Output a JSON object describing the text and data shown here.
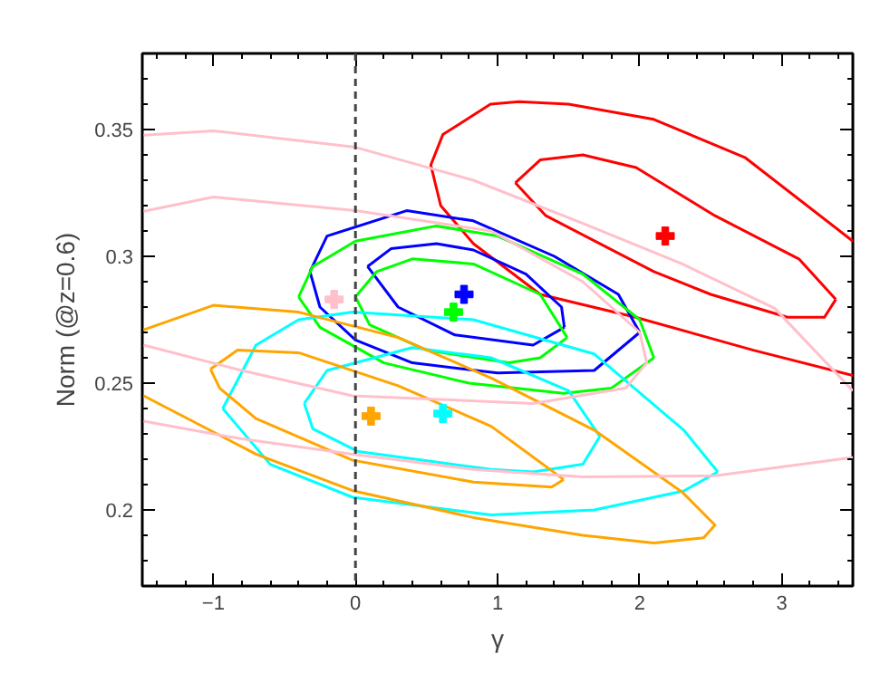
{
  "chart_data": {
    "type": "line",
    "xlabel": "γ",
    "ylabel": "Norm (@z=0.6)",
    "xlim": [
      -1.5,
      3.5
    ],
    "ylim": [
      0.17,
      0.38
    ],
    "xticks": [
      {
        "value": -1.4,
        "label": null
      },
      {
        "value": -1.2,
        "label": null
      },
      -1,
      {
        "value": -0.8,
        "label": null
      },
      {
        "value": -0.6,
        "label": null
      },
      {
        "value": -0.4,
        "label": null
      },
      {
        "value": -0.2,
        "label": null
      },
      0,
      {
        "value": 0.2,
        "label": null
      },
      {
        "value": 0.4,
        "label": null
      },
      {
        "value": 0.6,
        "label": null
      },
      {
        "value": 0.8,
        "label": null
      },
      1,
      {
        "value": 1.2,
        "label": null
      },
      {
        "value": 1.4,
        "label": null
      },
      {
        "value": 1.6,
        "label": null
      },
      {
        "value": 1.8,
        "label": null
      },
      2,
      {
        "value": 2.2,
        "label": null
      },
      {
        "value": 2.4,
        "label": null
      },
      {
        "value": 2.6,
        "label": null
      },
      {
        "value": 2.8,
        "label": null
      },
      3,
      {
        "value": 3.2,
        "label": null
      },
      {
        "value": 3.4,
        "label": null
      }
    ],
    "yticks": [
      {
        "value": 0.18,
        "label": null
      },
      {
        "value": 0.19,
        "label": null
      },
      0.2,
      {
        "value": 0.21,
        "label": null
      },
      {
        "value": 0.22,
        "label": null
      },
      {
        "value": 0.23,
        "label": null
      },
      {
        "value": 0.24,
        "label": null
      },
      0.25,
      {
        "value": 0.26,
        "label": null
      },
      {
        "value": 0.27,
        "label": null
      },
      {
        "value": 0.28,
        "label": null
      },
      {
        "value": 0.29,
        "label": null
      },
      0.3,
      {
        "value": 0.31,
        "label": null
      },
      {
        "value": 0.32,
        "label": null
      },
      {
        "value": 0.33,
        "label": null
      },
      {
        "value": 0.34,
        "label": null
      },
      0.35,
      {
        "value": 0.36,
        "label": null
      },
      {
        "value": 0.37,
        "label": null
      }
    ],
    "grid": false,
    "ref_lines": [
      {
        "axis": "x",
        "value": 0,
        "color": "#444444",
        "line_style": "dashed"
      }
    ],
    "series": [
      {
        "type": "line",
        "color": "#ff0000",
        "x": [
          3.5,
          2.74,
          2.1,
          1.5,
          1.15,
          0.95,
          0.615,
          0.53,
          0.6,
          0.83,
          1.3,
          1.97,
          2.8,
          3.5
        ],
        "values": [
          0.306,
          0.339,
          0.354,
          0.36,
          0.361,
          0.36,
          0.348,
          0.336,
          0.32,
          0.305,
          0.285,
          0.276,
          0.263,
          0.253
        ]
      },
      {
        "type": "line",
        "color": "#ff0000",
        "x": [
          1.125,
          1.3,
          1.6,
          1.975,
          2.53,
          3.12,
          3.38
        ],
        "values": [
          0.329,
          0.338,
          0.34,
          0.335,
          0.316,
          0.299,
          0.283
        ]
      },
      {
        "type": "line",
        "color": "#ff0000",
        "x": [
          3.38,
          3.3,
          3.04,
          2.5,
          2.1,
          1.34,
          1.125
        ],
        "values": [
          0.283,
          0.276,
          0.276,
          0.285,
          0.294,
          0.316,
          0.329
        ]
      },
      {
        "type": "line",
        "color": "#0000ff",
        "x": [
          -0.32,
          -0.2,
          0.36,
          0.83,
          1.4,
          1.85,
          2.0
        ],
        "values": [
          0.294,
          0.308,
          0.318,
          0.314,
          0.3,
          0.285,
          0.27
        ]
      },
      {
        "type": "line",
        "color": "#0000ff",
        "x": [
          2.0,
          1.68,
          1.0,
          0.4,
          0.0,
          -0.25,
          -0.32
        ],
        "values": [
          0.27,
          0.255,
          0.254,
          0.258,
          0.267,
          0.28,
          0.294
        ]
      },
      {
        "type": "line",
        "color": "#0000ff",
        "x": [
          0.085,
          0.25,
          0.57,
          0.83,
          1.2,
          1.45,
          1.47
        ],
        "values": [
          0.296,
          0.303,
          0.305,
          0.3025,
          0.293,
          0.28,
          0.272
        ]
      },
      {
        "type": "line",
        "color": "#0000ff",
        "x": [
          1.47,
          1.25,
          0.7,
          0.3,
          0.085
        ],
        "values": [
          0.272,
          0.265,
          0.269,
          0.28,
          0.296
        ]
      },
      {
        "type": "line",
        "color": "#00ff00",
        "x": [
          -0.4,
          -0.3,
          0.0,
          0.57,
          1.0,
          1.6,
          2.0,
          2.1
        ],
        "values": [
          0.284,
          0.296,
          0.306,
          0.312,
          0.308,
          0.293,
          0.275,
          0.26
        ]
      },
      {
        "type": "line",
        "color": "#00ff00",
        "x": [
          2.1,
          1.8,
          1.465,
          0.8,
          0.2,
          -0.25,
          -0.4
        ],
        "values": [
          0.26,
          0.248,
          0.246,
          0.25,
          0.258,
          0.272,
          0.284
        ]
      },
      {
        "type": "line",
        "color": "#00ff00",
        "x": [
          0.0,
          0.15,
          0.4,
          0.83,
          1.3,
          1.49
        ],
        "values": [
          0.284,
          0.294,
          0.299,
          0.297,
          0.285,
          0.268
        ]
      },
      {
        "type": "line",
        "color": "#00ff00",
        "x": [
          1.49,
          1.3,
          1.08,
          0.5,
          0.1,
          0.0
        ],
        "values": [
          0.268,
          0.26,
          0.258,
          0.263,
          0.273,
          0.284
        ]
      },
      {
        "type": "line",
        "color": "#00ffff",
        "x": [
          -0.934,
          -0.7,
          -0.4,
          -0.02,
          0.83,
          1.68,
          2.31,
          2.55
        ],
        "values": [
          0.24,
          0.265,
          0.275,
          0.278,
          0.275,
          0.2615,
          0.2315,
          0.215
        ]
      },
      {
        "type": "line",
        "color": "#00ffff",
        "x": [
          2.55,
          2.31,
          1.68,
          0.955,
          -0.02,
          -0.6,
          -0.934
        ],
        "values": [
          0.215,
          0.2075,
          0.2,
          0.198,
          0.205,
          0.218,
          0.24
        ]
      },
      {
        "type": "line",
        "color": "#00ffff",
        "x": [
          -0.36,
          -0.2,
          0.4,
          0.955,
          1.5,
          1.72
        ],
        "values": [
          0.242,
          0.255,
          0.264,
          0.26,
          0.247,
          0.229
        ]
      },
      {
        "type": "line",
        "color": "#00ffff",
        "x": [
          1.72,
          1.6,
          1.25,
          0.955,
          0.02,
          -0.3,
          -0.36
        ],
        "values": [
          0.229,
          0.218,
          0.215,
          0.216,
          0.223,
          0.232,
          0.242
        ]
      },
      {
        "type": "line",
        "color": "#ffa500",
        "x": [
          -1.49,
          -0.7,
          -0.02,
          0.83,
          1.6,
          2.1,
          2.45,
          2.53,
          2.3,
          1.68,
          0.955,
          0.3,
          -0.4,
          -1.0,
          -1.49
        ],
        "values": [
          0.245,
          0.222,
          0.2076,
          0.197,
          0.19,
          0.187,
          0.189,
          0.194,
          0.207,
          0.2315,
          0.252,
          0.268,
          0.278,
          0.2807,
          0.271
        ]
      },
      {
        "type": "line",
        "color": "#ffa500",
        "x": [
          -1.02,
          -0.83,
          -0.4,
          0.3,
          0.955,
          1.465
        ],
        "values": [
          0.2555,
          0.263,
          0.262,
          0.249,
          0.233,
          0.212
        ]
      },
      {
        "type": "line",
        "color": "#ffa500",
        "x": [
          1.465,
          1.38,
          0.83,
          -0.02,
          -0.7,
          -0.955,
          -1.02
        ],
        "values": [
          0.212,
          0.209,
          0.211,
          0.2196,
          0.236,
          0.248,
          0.2555
        ]
      },
      {
        "type": "line",
        "color": "#ffc0cb",
        "x": [
          -1.49,
          -1.0,
          0.0,
          0.83,
          1.6,
          2.3,
          2.95,
          3.5
        ],
        "values": [
          0.3478,
          0.3495,
          0.343,
          0.33,
          0.313,
          0.297,
          0.2795,
          0.247
        ]
      },
      {
        "type": "line",
        "color": "#ffc0cb",
        "x": [
          3.5,
          2.53,
          1.6,
          0.83,
          -0.02,
          -0.8,
          -1.49
        ],
        "values": [
          0.2207,
          0.2135,
          0.213,
          0.216,
          0.222,
          0.228,
          0.235
        ]
      },
      {
        "type": "line",
        "color": "#ffc0cb",
        "x": [
          -1.49,
          -1.0,
          0.0,
          0.955,
          1.6,
          2.0,
          2.05,
          1.9,
          1.25,
          -0.02,
          -0.8,
          -1.49
        ],
        "values": [
          0.3178,
          0.3234,
          0.318,
          0.31,
          0.29,
          0.27,
          0.258,
          0.248,
          0.242,
          0.245,
          0.255,
          0.265
        ]
      },
      {
        "type": "scatter",
        "marker": "cross",
        "color": "#ff0000",
        "x": [
          2.18
        ],
        "values": [
          0.308
        ]
      },
      {
        "type": "scatter",
        "marker": "cross",
        "color": "#0000ff",
        "x": [
          0.764
        ],
        "values": [
          0.285
        ]
      },
      {
        "type": "scatter",
        "marker": "cross",
        "color": "#00ff00",
        "x": [
          0.69
        ],
        "values": [
          0.278
        ]
      },
      {
        "type": "scatter",
        "marker": "cross",
        "color": "#00ffff",
        "x": [
          0.615
        ],
        "values": [
          0.238
        ]
      },
      {
        "type": "scatter",
        "marker": "cross",
        "color": "#ffa500",
        "x": [
          0.11
        ],
        "values": [
          0.237
        ]
      },
      {
        "type": "scatter",
        "marker": "cross",
        "color": "#ffc0cb",
        "x": [
          -0.15
        ],
        "values": [
          0.283
        ]
      }
    ]
  }
}
